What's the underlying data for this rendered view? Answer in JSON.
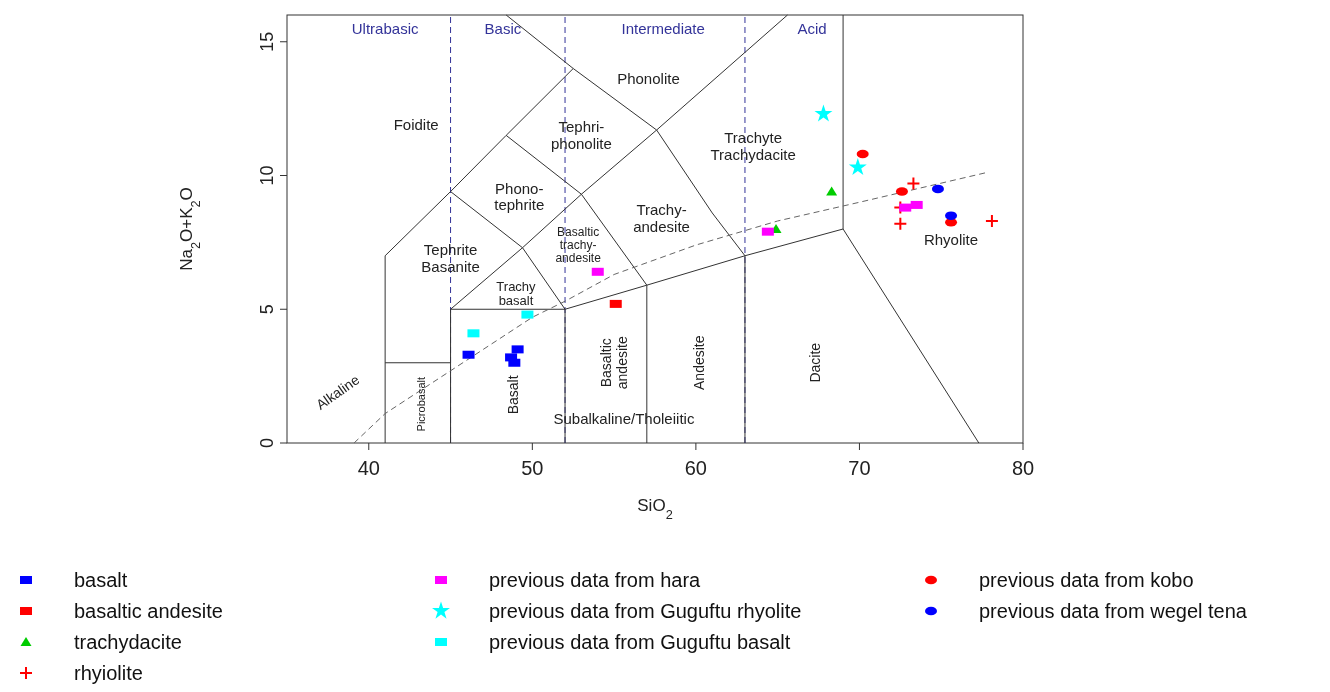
{
  "chart_data": {
    "type": "scatter",
    "xlabel": "SiO$_{2}$",
    "ylabel": "Na$_{2}$O+K$_{2}$O",
    "xlim": [
      35,
      80
    ],
    "ylim": [
      0,
      16
    ],
    "xticks": [
      40,
      50,
      60,
      70,
      80
    ],
    "yticks": [
      0,
      5,
      10,
      15
    ],
    "grid": false,
    "legend": "bottom",
    "series": [
      {
        "name": "basalt",
        "color": "#0000ff",
        "marker": "square",
        "x": [
          46.1,
          49.1,
          48.7,
          48.9
        ],
        "values": [
          3.3,
          3.5,
          3.2,
          3.0
        ]
      },
      {
        "name": "basaltic andesite",
        "color": "#ff0000",
        "marker": "square",
        "x": [
          55.1
        ],
        "values": [
          5.2
        ]
      },
      {
        "name": "trachydacite",
        "color": "#00cc00",
        "marker": "triangle",
        "x": [
          68.3,
          64.9
        ],
        "values": [
          9.4,
          8.0
        ]
      },
      {
        "name": "rhyiolite",
        "color": "#ff0000",
        "marker": "cross",
        "x": [
          73.3,
          72.5,
          72.5,
          78.1
        ],
        "values": [
          9.7,
          8.8,
          8.2,
          8.3
        ]
      },
      {
        "name": "previous data from hara",
        "color": "#ff00ff",
        "marker": "square",
        "x": [
          54.0,
          64.4,
          72.8,
          73.5
        ],
        "values": [
          6.4,
          7.9,
          8.8,
          8.9
        ]
      },
      {
        "name": "previous data from Guguftu rhyolite",
        "color": "#00ffff",
        "marker": "star",
        "x": [
          67.8,
          69.9
        ],
        "values": [
          12.3,
          10.3
        ]
      },
      {
        "name": "previous data from Guguftu basalt",
        "color": "#00ffff",
        "marker": "square",
        "x": [
          46.4,
          49.7
        ],
        "values": [
          4.1,
          4.8
        ]
      },
      {
        "name": "previous data from kobo",
        "color": "#ff0000",
        "marker": "circle",
        "x": [
          70.2,
          72.6,
          75.6
        ],
        "values": [
          10.8,
          9.4,
          8.25
        ]
      },
      {
        "name": "previous data from wegel tena",
        "color": "#0000ff",
        "marker": "circle",
        "x": [
          74.8,
          75.6
        ],
        "values": [
          9.5,
          8.5
        ]
      },
      {
        "type": "line",
        "color": "#333333",
        "marker": "none",
        "x": [
          41,
          41,
          45,
          48.4,
          52.5
        ],
        "values": [
          0,
          7,
          9.4,
          11.5,
          14
        ]
      },
      {
        "type": "line",
        "color": "#333333",
        "marker": "none",
        "x": [
          48.4,
          52.5,
          57.6,
          61,
          63
        ],
        "values": [
          16,
          14,
          11.7,
          8.6,
          7
        ]
      },
      {
        "type": "line",
        "color": "#333333",
        "marker": "none",
        "x": [
          45,
          49.4,
          53,
          57.6,
          65.6
        ],
        "values": [
          5,
          7.3,
          9.3,
          11.7,
          16
        ]
      },
      {
        "type": "line",
        "color": "#333333",
        "marker": "none",
        "x": [
          45,
          49.4,
          52
        ],
        "values": [
          9.4,
          7.3,
          5
        ]
      },
      {
        "type": "line",
        "color": "#333333",
        "marker": "none",
        "x": [
          48.4,
          53,
          57
        ],
        "values": [
          11.5,
          9.3,
          5.9
        ]
      },
      {
        "type": "line",
        "color": "#333333",
        "marker": "none",
        "x": [
          41,
          45
        ],
        "values": [
          3,
          3
        ]
      },
      {
        "type": "line",
        "color": "#333333",
        "marker": "none",
        "x": [
          45,
          45,
          52,
          52
        ],
        "values": [
          0,
          5,
          5,
          0
        ]
      },
      {
        "type": "line",
        "color": "#333333",
        "marker": "none",
        "x": [
          52,
          57,
          63,
          69,
          77.3
        ],
        "values": [
          5,
          5.9,
          7,
          8,
          0
        ]
      },
      {
        "type": "line",
        "color": "#333333",
        "marker": "none",
        "x": [
          57,
          57
        ],
        "values": [
          0,
          5.9
        ]
      },
      {
        "type": "line",
        "color": "#333333",
        "marker": "none",
        "x": [
          63,
          63
        ],
        "values": [
          0,
          7
        ]
      },
      {
        "type": "line",
        "color": "#333333",
        "marker": "none",
        "x": [
          69,
          69
        ],
        "values": [
          8,
          16
        ]
      },
      {
        "type": "line",
        "color": "#666666",
        "marker": "none",
        "line_style": "dashed",
        "x": [
          39.1,
          41,
          45,
          50,
          52,
          55,
          60,
          65,
          70,
          77.7
        ],
        "values": [
          0,
          1.1,
          2.7,
          4.7,
          5.3,
          6.3,
          7.4,
          8.3,
          9.0,
          10.1
        ]
      }
    ],
    "ref_lines": [
      {
        "axis": "x",
        "value": 45,
        "color": "#333399",
        "line_style": "dashed"
      },
      {
        "axis": "x",
        "value": 52,
        "color": "#333399",
        "line_style": "dashed"
      },
      {
        "axis": "x",
        "value": 63,
        "color": "#333399",
        "line_style": "dashed"
      }
    ],
    "annotations": [
      "Ultrabasic",
      "Basic",
      "Intermediate",
      "Acid",
      "Phonolite",
      "Foidite",
      "Tephri-\nphonolite",
      "Trachyte\nTrachydacite",
      "Phono-\ntephrite",
      "Trachy-\nandesite",
      "Tephrite\nBasanite",
      "Basaltic\ntrachy-\nandesite",
      "Trachy\nbasalt",
      "Rhyolite",
      "Subalkaline/Tholeiitic",
      "Picrobasalt",
      "Basalt",
      "Basaltic\nandesite",
      "Andesite",
      "Dacite",
      "Alkaline"
    ]
  }
}
